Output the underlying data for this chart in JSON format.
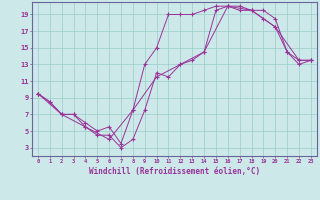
{
  "xlabel": "Windchill (Refroidissement éolien,°C)",
  "background_color": "#cce8e8",
  "line_color": "#993399",
  "grid_color": "#99cccc",
  "spine_color": "#666699",
  "xlim": [
    -0.5,
    23.5
  ],
  "ylim": [
    2.0,
    20.5
  ],
  "xticks": [
    0,
    1,
    2,
    3,
    4,
    5,
    6,
    7,
    8,
    9,
    10,
    11,
    12,
    13,
    14,
    15,
    16,
    17,
    18,
    19,
    20,
    21,
    22,
    23
  ],
  "yticks": [
    3,
    5,
    7,
    9,
    11,
    13,
    15,
    17,
    19
  ],
  "curve1_x": [
    0,
    1,
    2,
    3,
    4,
    5,
    6,
    7,
    8,
    9,
    10,
    11,
    12,
    13,
    14,
    15,
    16,
    17,
    18,
    19,
    20,
    21,
    22,
    23
  ],
  "curve1_y": [
    9.5,
    8.5,
    7.0,
    7.0,
    5.5,
    4.5,
    4.5,
    3.0,
    4.0,
    7.5,
    12.0,
    11.5,
    13.0,
    13.5,
    14.5,
    19.5,
    20.0,
    20.0,
    19.5,
    19.5,
    18.5,
    14.5,
    13.5,
    13.5
  ],
  "curve2_x": [
    0,
    1,
    2,
    3,
    4,
    5,
    6,
    7,
    8,
    9,
    10,
    11,
    12,
    13,
    14,
    15,
    16,
    17,
    18,
    19,
    20,
    21,
    22,
    23
  ],
  "curve2_y": [
    9.5,
    8.5,
    7.0,
    7.0,
    6.0,
    5.0,
    5.5,
    3.5,
    7.5,
    13.0,
    15.0,
    19.0,
    19.0,
    19.0,
    19.5,
    20.0,
    20.0,
    19.5,
    19.5,
    18.5,
    17.5,
    14.5,
    13.0,
    13.5
  ],
  "curve3_x": [
    0,
    2,
    4,
    6,
    8,
    10,
    12,
    14,
    16,
    18,
    20,
    22,
    23
  ],
  "curve3_y": [
    9.5,
    7.0,
    5.5,
    4.0,
    7.5,
    11.5,
    13.0,
    14.5,
    20.0,
    19.5,
    17.5,
    13.5,
    13.5
  ]
}
